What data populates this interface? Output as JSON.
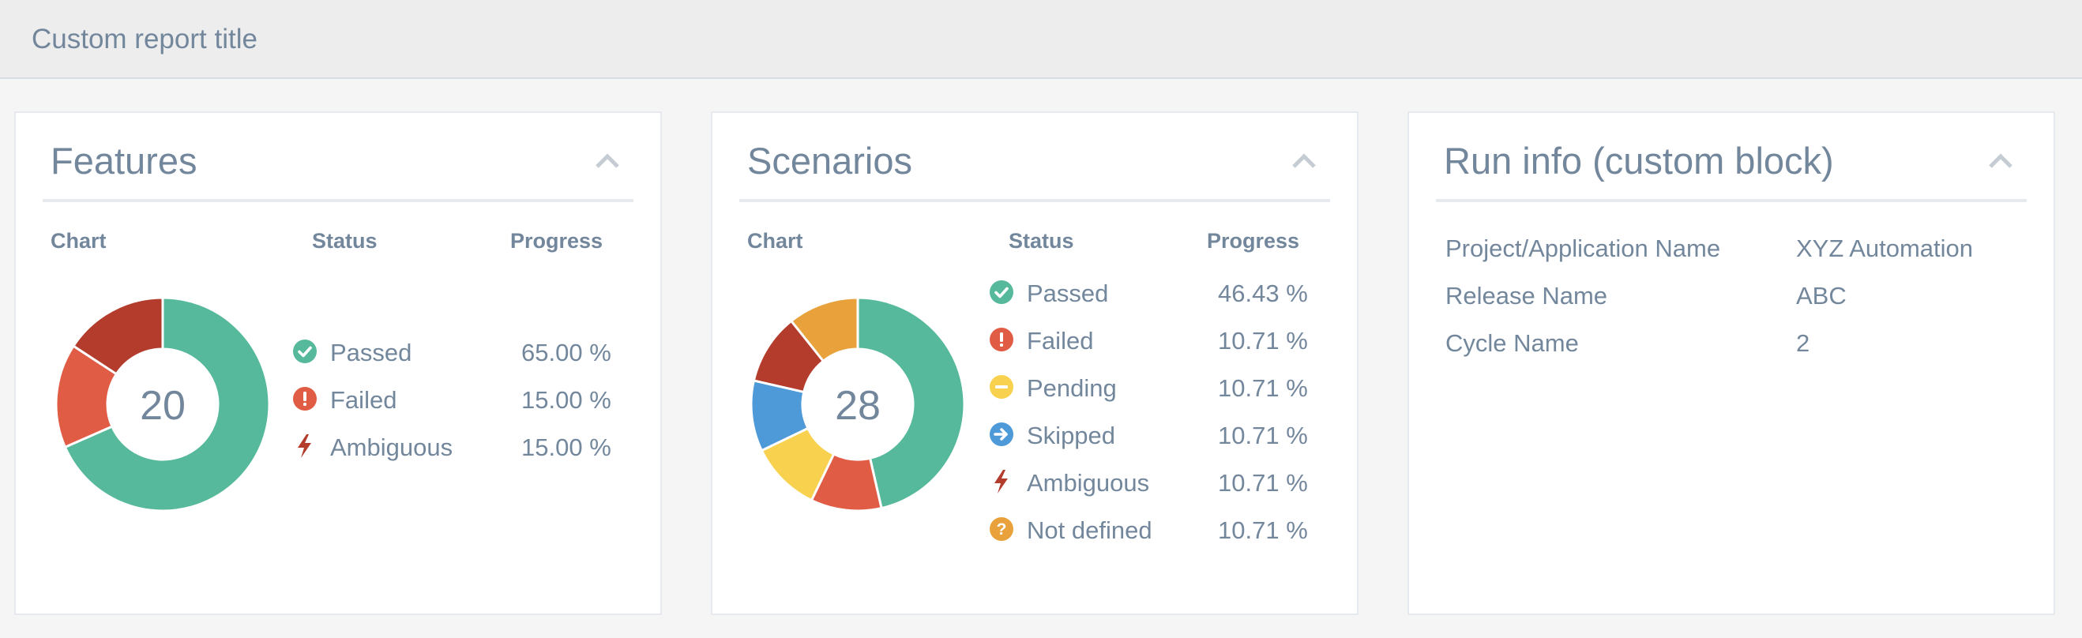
{
  "header": {
    "title": "Custom report title"
  },
  "colors": {
    "passed": "#57b99b",
    "failed": "#e05c45",
    "ambiguous": "#b33c2d",
    "pending": "#f8d24f",
    "skipped": "#4e9ad8",
    "not_defined": "#e9a23b"
  },
  "features": {
    "title": "Features",
    "col_chart": "Chart",
    "col_status": "Status",
    "col_progress": "Progress",
    "total": "20",
    "rows": [
      {
        "label": "Passed",
        "progress": "65.00 %",
        "icon": "check-circle-icon"
      },
      {
        "label": "Failed",
        "progress": "15.00 %",
        "icon": "exclamation-circle-icon"
      },
      {
        "label": "Ambiguous",
        "progress": "15.00 %",
        "icon": "bolt-icon"
      }
    ]
  },
  "scenarios": {
    "title": "Scenarios",
    "col_chart": "Chart",
    "col_status": "Status",
    "col_progress": "Progress",
    "total": "28",
    "rows": [
      {
        "label": "Passed",
        "progress": "46.43 %",
        "icon": "check-circle-icon"
      },
      {
        "label": "Failed",
        "progress": "10.71 %",
        "icon": "exclamation-circle-icon"
      },
      {
        "label": "Pending",
        "progress": "10.71 %",
        "icon": "minus-circle-icon"
      },
      {
        "label": "Skipped",
        "progress": "10.71 %",
        "icon": "arrow-right-circle-icon"
      },
      {
        "label": "Ambiguous",
        "progress": "10.71 %",
        "icon": "bolt-icon"
      },
      {
        "label": "Not defined",
        "progress": "10.71 %",
        "icon": "question-circle-icon"
      }
    ]
  },
  "run_info": {
    "title": "Run info (custom block)",
    "rows": [
      {
        "key": "Project/Application Name",
        "value": "XYZ Automation"
      },
      {
        "key": "Release Name",
        "value": "ABC"
      },
      {
        "key": "Cycle Name",
        "value": "2"
      }
    ]
  },
  "chart_data": [
    {
      "type": "pie",
      "title": "",
      "categories": [
        "Passed",
        "Failed",
        "Ambiguous"
      ],
      "values": [
        13,
        3,
        3
      ],
      "center_label": "20"
    },
    {
      "type": "pie",
      "title": "",
      "categories": [
        "Passed",
        "Failed",
        "Pending",
        "Skipped",
        "Ambiguous",
        "Not defined"
      ],
      "values": [
        13,
        3,
        3,
        3,
        3,
        3
      ],
      "center_label": "28"
    }
  ]
}
